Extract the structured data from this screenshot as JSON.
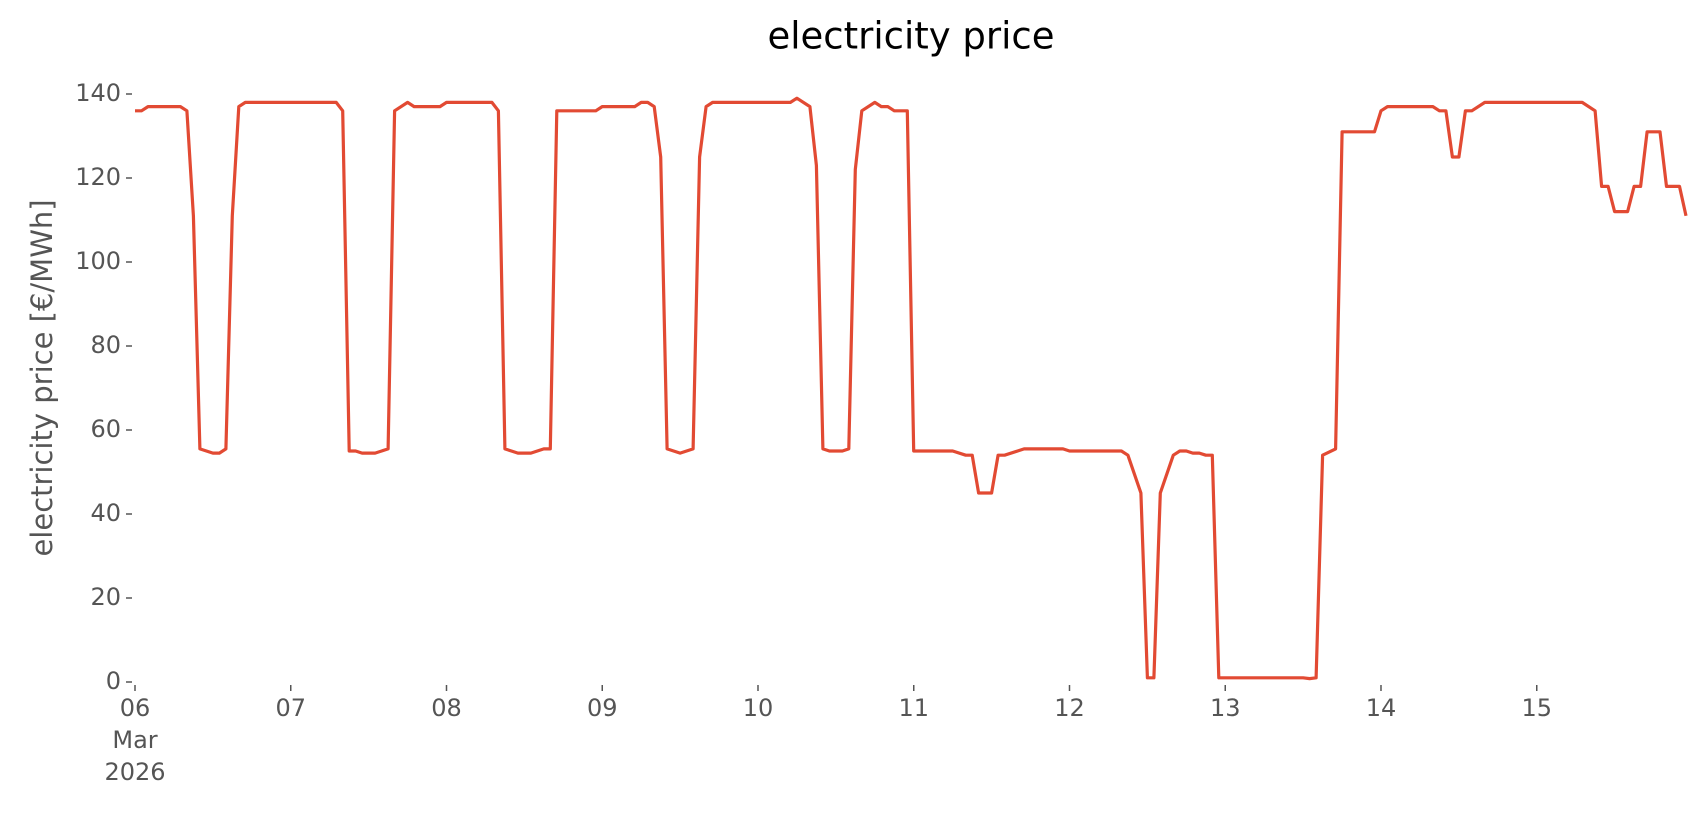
{
  "chart_data": {
    "type": "line",
    "title": "electricity price",
    "y_label": "electricity price [€/MWh]",
    "x": [
      "2026-03-06T00:00",
      "2026-03-06T01:00",
      "2026-03-06T02:00",
      "2026-03-06T07:00",
      "2026-03-06T08:00",
      "2026-03-06T09:00",
      "2026-03-06T10:00",
      "2026-03-06T11:00",
      "2026-03-06T12:00",
      "2026-03-06T13:00",
      "2026-03-06T14:00",
      "2026-03-06T15:00",
      "2026-03-06T16:00",
      "2026-03-06T17:00",
      "2026-03-07T07:00",
      "2026-03-07T08:00",
      "2026-03-07T09:00",
      "2026-03-07T10:00",
      "2026-03-07T11:00",
      "2026-03-07T13:00",
      "2026-03-07T15:00",
      "2026-03-07T16:00",
      "2026-03-07T18:00",
      "2026-03-07T19:00",
      "2026-03-07T23:00",
      "2026-03-08T00:00",
      "2026-03-08T07:00",
      "2026-03-08T08:00",
      "2026-03-08T09:00",
      "2026-03-08T10:00",
      "2026-03-08T11:00",
      "2026-03-08T13:00",
      "2026-03-08T15:00",
      "2026-03-08T16:00",
      "2026-03-08T17:00",
      "2026-03-08T23:00",
      "2026-03-09T00:00",
      "2026-03-09T05:00",
      "2026-03-09T06:00",
      "2026-03-09T07:00",
      "2026-03-09T08:00",
      "2026-03-09T09:00",
      "2026-03-09T10:00",
      "2026-03-09T11:00",
      "2026-03-09T12:00",
      "2026-03-09T14:00",
      "2026-03-09T15:00",
      "2026-03-09T16:00",
      "2026-03-09T17:00",
      "2026-03-10T05:00",
      "2026-03-10T06:00",
      "2026-03-10T08:00",
      "2026-03-10T09:00",
      "2026-03-10T10:00",
      "2026-03-10T11:00",
      "2026-03-10T13:00",
      "2026-03-10T14:00",
      "2026-03-10T15:00",
      "2026-03-10T16:00",
      "2026-03-10T18:00",
      "2026-03-10T19:00",
      "2026-03-10T20:00",
      "2026-03-10T21:00",
      "2026-03-10T23:00",
      "2026-03-11T00:00",
      "2026-03-11T06:00",
      "2026-03-11T08:00",
      "2026-03-11T09:00",
      "2026-03-11T10:00",
      "2026-03-11T12:00",
      "2026-03-11T13:00",
      "2026-03-11T14:00",
      "2026-03-11T16:00",
      "2026-03-11T17:00",
      "2026-03-11T23:00",
      "2026-03-12T00:00",
      "2026-03-12T08:00",
      "2026-03-12T09:00",
      "2026-03-12T11:00",
      "2026-03-12T12:00",
      "2026-03-12T13:00",
      "2026-03-12T14:00",
      "2026-03-12T16:00",
      "2026-03-12T17:00",
      "2026-03-12T18:00",
      "2026-03-12T19:00",
      "2026-03-12T20:00",
      "2026-03-12T21:00",
      "2026-03-12T22:00",
      "2026-03-12T23:00",
      "2026-03-13T12:00",
      "2026-03-13T13:00",
      "2026-03-13T14:00",
      "2026-03-13T15:00",
      "2026-03-13T17:00",
      "2026-03-13T18:00",
      "2026-03-13T23:00",
      "2026-03-14T00:00",
      "2026-03-14T01:00",
      "2026-03-14T08:00",
      "2026-03-14T09:00",
      "2026-03-14T10:00",
      "2026-03-14T11:00",
      "2026-03-14T12:00",
      "2026-03-14T13:00",
      "2026-03-14T14:00",
      "2026-03-14T16:00",
      "2026-03-15T07:00",
      "2026-03-15T09:00",
      "2026-03-15T10:00",
      "2026-03-15T11:00",
      "2026-03-15T12:00",
      "2026-03-15T14:00",
      "2026-03-15T15:00",
      "2026-03-15T16:00",
      "2026-03-15T17:00",
      "2026-03-15T19:00",
      "2026-03-15T20:00",
      "2026-03-15T22:00",
      "2026-03-15T23:00"
    ],
    "values": [
      136,
      136,
      137,
      137,
      136,
      111,
      55.5,
      55,
      54.5,
      54.5,
      55.5,
      111,
      137,
      138,
      138,
      136,
      55,
      55,
      54.5,
      54.5,
      55.5,
      136,
      138,
      137,
      137,
      138,
      138,
      136,
      55.5,
      55,
      54.5,
      54.5,
      55.5,
      55.5,
      136,
      136,
      137,
      137,
      138,
      138,
      137,
      125,
      55.5,
      55,
      54.5,
      55.5,
      125,
      137,
      138,
      138,
      139,
      137,
      123,
      55.5,
      55,
      55,
      55.5,
      122,
      136,
      138,
      137,
      137,
      136,
      136,
      55,
      55,
      54,
      54,
      45,
      45,
      54,
      54,
      55,
      55.5,
      55.5,
      55,
      55,
      54,
      45,
      1,
      1,
      45,
      54,
      55,
      55,
      54.5,
      54.5,
      54,
      54,
      1,
      1,
      0.8,
      1,
      54,
      55.5,
      131,
      131,
      136,
      137,
      137,
      136,
      136,
      125,
      125,
      136,
      136,
      138,
      138,
      136,
      118,
      118,
      112,
      112,
      118,
      118,
      131,
      131,
      118,
      118,
      111
    ],
    "color": "#e24a33",
    "xlim": [
      "2026-03-06T00:00",
      "2026-03-15T23:00"
    ],
    "xticks": [
      {
        "value": "2026-03-06T00:00",
        "label": "06\nMar\n2026"
      },
      {
        "value": "2026-03-07T00:00",
        "label": "07"
      },
      {
        "value": "2026-03-08T00:00",
        "label": "08"
      },
      {
        "value": "2026-03-09T00:00",
        "label": "09"
      },
      {
        "value": "2026-03-10T00:00",
        "label": "10"
      },
      {
        "value": "2026-03-11T00:00",
        "label": "11"
      },
      {
        "value": "2026-03-12T00:00",
        "label": "12"
      },
      {
        "value": "2026-03-13T00:00",
        "label": "13"
      },
      {
        "value": "2026-03-14T00:00",
        "label": "14"
      },
      {
        "value": "2026-03-15T00:00",
        "label": "15"
      }
    ],
    "ylim": [
      0,
      140
    ],
    "yticks": [
      0,
      20,
      40,
      60,
      80,
      100,
      120,
      140
    ],
    "grid": false
  }
}
